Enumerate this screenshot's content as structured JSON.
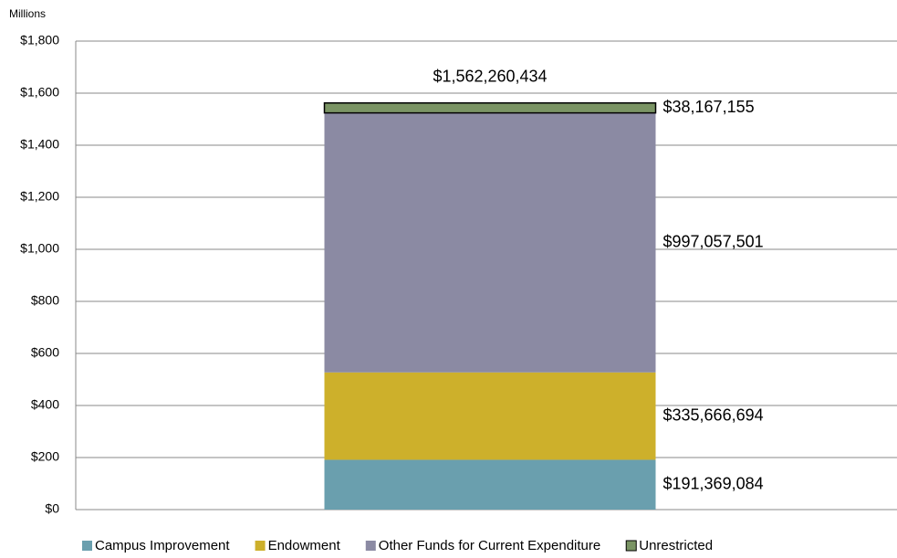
{
  "chart_data": {
    "type": "stacked-bar",
    "y_unit_label": "Millions",
    "categories": [
      null
    ],
    "series": [
      {
        "name": "Campus Improvement",
        "color": "#6a9fae",
        "values": [
          191.369084
        ],
        "value_labels": [
          "$191,369,084"
        ]
      },
      {
        "name": "Endowment",
        "color": "#cdb02b",
        "values": [
          335.666694
        ],
        "value_labels": [
          "$335,666,694"
        ]
      },
      {
        "name": "Other Funds for Current Expenditure",
        "color": "#8b8aa3",
        "values": [
          997.057501
        ],
        "value_labels": [
          "$997,057,501"
        ]
      },
      {
        "name": "Unrestricted",
        "color": "#7a9464",
        "values": [
          38.167155
        ],
        "value_labels": [
          "$38,167,155"
        ]
      }
    ],
    "total": {
      "value": 1562.260434,
      "label": "$1,562,260,434"
    },
    "ylim": [
      0,
      1800
    ],
    "yticks": [
      {
        "value": 0,
        "label": "$0"
      },
      {
        "value": 200,
        "label": "$200"
      },
      {
        "value": 400,
        "label": "$400"
      },
      {
        "value": 600,
        "label": "$600"
      },
      {
        "value": 800,
        "label": "$800"
      },
      {
        "value": 1000,
        "label": "$1,000"
      },
      {
        "value": 1200,
        "label": "$1,200"
      },
      {
        "value": 1400,
        "label": "$1,400"
      },
      {
        "value": 1600,
        "label": "$1,600"
      },
      {
        "value": 1800,
        "label": "$1,800"
      }
    ],
    "grid": true,
    "legend": "bottom"
  }
}
